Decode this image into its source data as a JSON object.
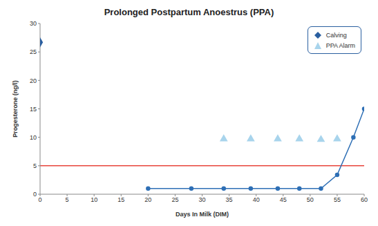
{
  "chart_data": {
    "type": "line",
    "title": "Prolonged Postpartum Anoestrus (PPA)",
    "x_label": "Days In Milk (DIM)",
    "y_label": "Progesterone (ng/l)",
    "xlim": [
      0,
      60
    ],
    "xticks": [
      0,
      5,
      10,
      15,
      20,
      25,
      30,
      35,
      40,
      45,
      50,
      55,
      60
    ],
    "ylim": [
      0,
      30
    ],
    "yticks": [
      0,
      5,
      10,
      15,
      20,
      25,
      30
    ],
    "grid": false,
    "legend": "upper right",
    "reference_line": {
      "value": 5,
      "color": "#e8453c"
    },
    "series": [
      {
        "name": "Calving",
        "type": "scatter",
        "marker": "diamond",
        "color": "#2a5fa0",
        "x": [
          0
        ],
        "values": [
          26.7
        ]
      },
      {
        "name": "PPA Alarm",
        "type": "scatter",
        "marker": "triangle",
        "color": "#a8d4ec",
        "x": [
          34,
          39,
          44,
          48,
          52,
          55
        ],
        "values": [
          9.7,
          9.7,
          9.7,
          9.7,
          9.6,
          9.7
        ]
      },
      {
        "type": "line",
        "marker": "circle",
        "color": "#2e6fb5",
        "x": [
          20,
          28,
          34,
          39,
          44,
          48,
          52,
          55,
          58,
          60
        ],
        "values": [
          1,
          1,
          1,
          1,
          1,
          1,
          1,
          3.4,
          10,
          15
        ]
      }
    ]
  }
}
